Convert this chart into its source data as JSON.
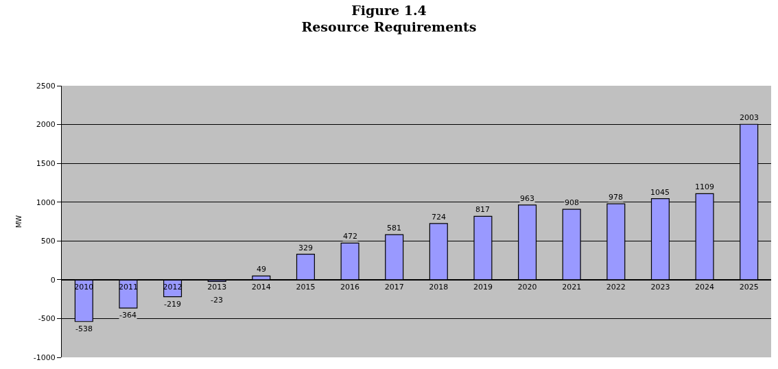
{
  "chart_data": {
    "type": "bar",
    "title": "Figure 1.4",
    "subtitle": "Resource Requirements",
    "ylabel": "MW",
    "categories": [
      "2010",
      "2011",
      "2012",
      "2013",
      "2014",
      "2015",
      "2016",
      "2017",
      "2018",
      "2019",
      "2020",
      "2021",
      "2022",
      "2023",
      "2024",
      "2025"
    ],
    "values": [
      -538,
      -364,
      -219,
      -23,
      49,
      329,
      472,
      581,
      724,
      817,
      963,
      908,
      978,
      1045,
      1109,
      2003
    ],
    "color": "#9999ff",
    "data_labels": true,
    "ylim": [
      -1000,
      2500
    ],
    "yticks": [
      -1000,
      -500,
      0,
      500,
      1000,
      1500,
      2000,
      2500
    ],
    "grid": "y",
    "legend": false
  }
}
